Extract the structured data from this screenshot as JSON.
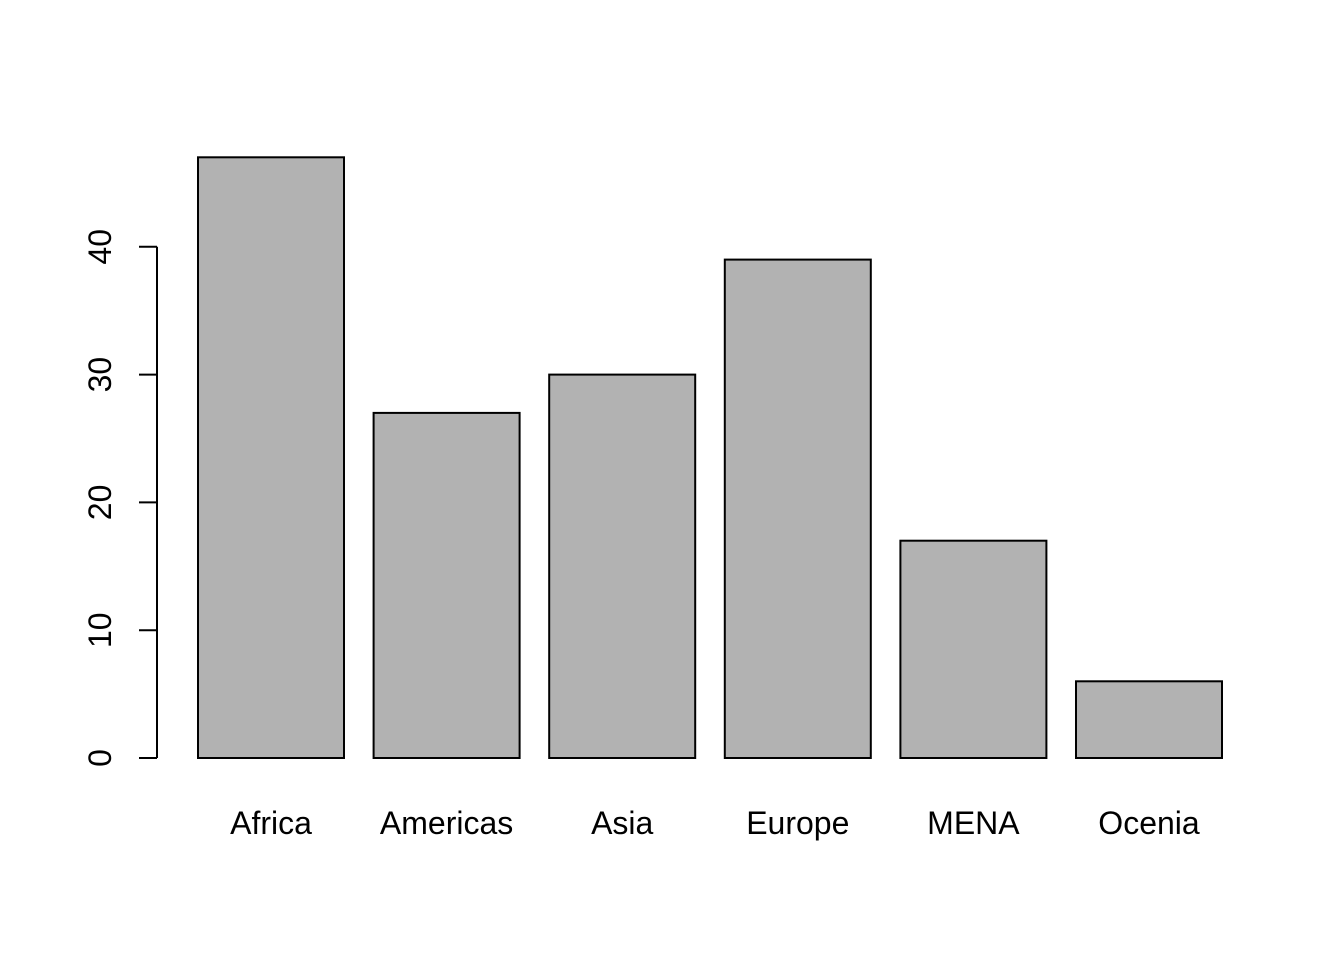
{
  "chart_data": {
    "type": "bar",
    "title": "",
    "xlabel": "",
    "ylabel": "",
    "categories": [
      "Africa",
      "Americas",
      "Asia",
      "Europe",
      "MENA",
      "Ocenia"
    ],
    "values": [
      47,
      27,
      30,
      39,
      17,
      6
    ],
    "yticks": [
      0,
      10,
      20,
      30,
      40
    ],
    "ylim": [
      0,
      47
    ],
    "grid": false,
    "legend": "none",
    "bar_color": "#b2b2b2",
    "bar_border_color": "#000000"
  }
}
